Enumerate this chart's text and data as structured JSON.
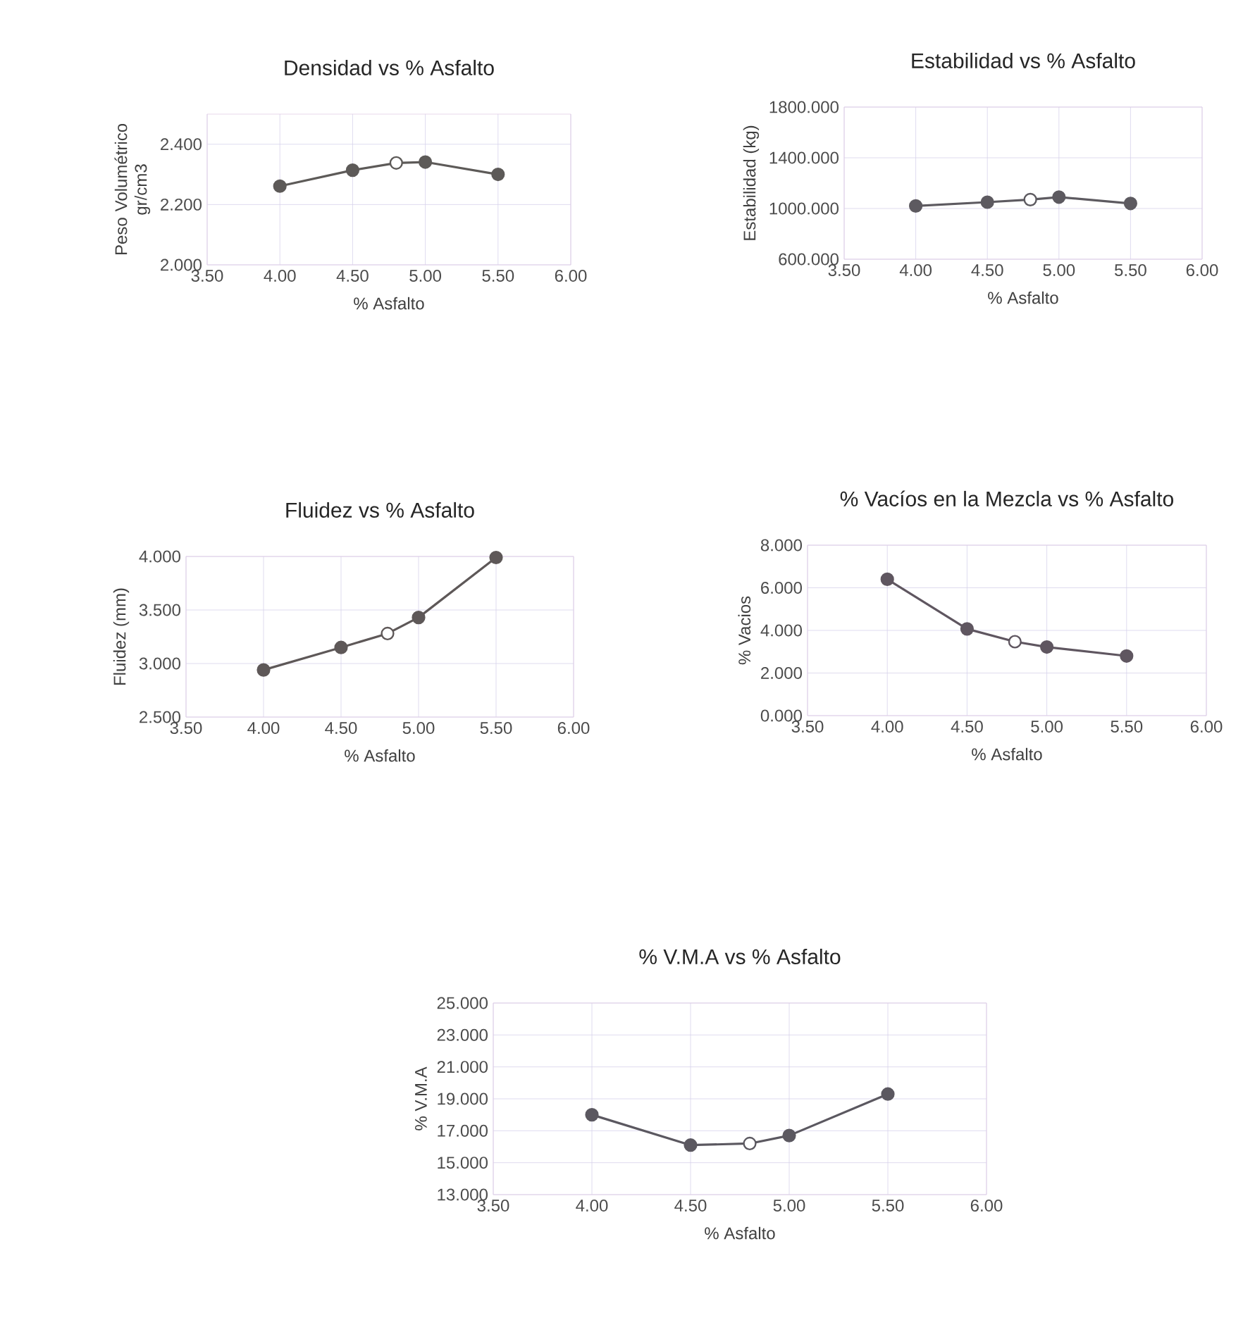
{
  "chart_data": [
    {
      "type": "line",
      "title": "Densidad vs % Asfalto",
      "xlabel": "% Asfalto",
      "ylabel": "Peso Volumétrico gr/cm3",
      "x": [
        4.0,
        4.5,
        4.8,
        5.0,
        5.5
      ],
      "series": [
        {
          "color": "#5d5a58",
          "colors": [
            "#5d5a58",
            "#5d5a58",
            "#ffffff",
            "#5d5a58",
            "#5d5a58"
          ],
          "values": [
            2.261,
            2.314,
            2.338,
            2.341,
            2.3
          ]
        }
      ],
      "xlim": [
        3.5,
        6.0
      ],
      "xticks": [
        {
          "value": 3.5,
          "label": "3.50"
        },
        {
          "value": 4.0,
          "label": "4.00"
        },
        {
          "value": 4.5,
          "label": "4.50"
        },
        {
          "value": 5.0,
          "label": "5.00"
        },
        {
          "value": 5.5,
          "label": "5.50"
        },
        {
          "value": 6.0,
          "label": "6.00"
        }
      ],
      "ylim": [
        2.0,
        2.5
      ],
      "yticks": [
        {
          "value": 2.0,
          "label": "2.000"
        },
        {
          "value": 2.2,
          "label": "2.200"
        },
        {
          "value": 2.4,
          "label": "2.400"
        }
      ],
      "grid": true,
      "marker": "circle",
      "line_style": "solid"
    },
    {
      "type": "line",
      "title": "Estabilidad vs % Asfalto",
      "xlabel": "% Asfalto",
      "ylabel": "Estabilidad (kg)",
      "x": [
        4.0,
        4.5,
        4.8,
        5.0,
        5.5
      ],
      "series": [
        {
          "color": "#5d5a60",
          "colors": [
            "#5d5a60",
            "#5d5a60",
            "#ffffff",
            "#5d5a60",
            "#5d5a60"
          ],
          "values": [
            1020,
            1050,
            1070,
            1090,
            1040
          ]
        }
      ],
      "xlim": [
        3.5,
        6.0
      ],
      "xticks": [
        {
          "value": 3.5,
          "label": "3.50"
        },
        {
          "value": 4.0,
          "label": "4.00"
        },
        {
          "value": 4.5,
          "label": "4.50"
        },
        {
          "value": 5.0,
          "label": "5.00"
        },
        {
          "value": 5.5,
          "label": "5.50"
        },
        {
          "value": 6.0,
          "label": "6.00"
        }
      ],
      "ylim": [
        600,
        1800
      ],
      "yticks": [
        {
          "value": 600,
          "label": "600.000"
        },
        {
          "value": 1000,
          "label": "1000.000"
        },
        {
          "value": 1400,
          "label": "1400.000"
        },
        {
          "value": 1800,
          "label": "1800.000"
        }
      ],
      "grid": true,
      "marker": "circle",
      "line_style": "solid"
    },
    {
      "type": "line",
      "title": "Fluidez vs % Asfalto",
      "xlabel": "% Asfalto",
      "ylabel": "Fluidez (mm)",
      "x": [
        4.0,
        4.5,
        4.8,
        5.0,
        5.5
      ],
      "series": [
        {
          "color": "#5e5858",
          "colors": [
            "#5e5858",
            "#5e5858",
            "#ffffff",
            "#5e5858",
            "#5e5858"
          ],
          "values": [
            2.94,
            3.15,
            3.28,
            3.43,
            3.99
          ]
        }
      ],
      "xlim": [
        3.5,
        6.0
      ],
      "xticks": [
        {
          "value": 3.5,
          "label": "3.50"
        },
        {
          "value": 4.0,
          "label": "4.00"
        },
        {
          "value": 4.5,
          "label": "4.50"
        },
        {
          "value": 5.0,
          "label": "5.00"
        },
        {
          "value": 5.5,
          "label": "5.50"
        },
        {
          "value": 6.0,
          "label": "6.00"
        }
      ],
      "ylim": [
        2.5,
        4.0
      ],
      "yticks": [
        {
          "value": 2.5,
          "label": "2.500"
        },
        {
          "value": 3.0,
          "label": "3.000"
        },
        {
          "value": 3.5,
          "label": "3.500"
        },
        {
          "value": 4.0,
          "label": "4.000"
        }
      ],
      "grid": true,
      "marker": "circle",
      "line_style": "solid"
    },
    {
      "type": "line",
      "title": "% Vacíos en la Mezcla vs % Asfalto",
      "xlabel": "% Asfalto",
      "ylabel": "% Vacios",
      "x": [
        4.0,
        4.5,
        4.8,
        5.0,
        5.5
      ],
      "series": [
        {
          "color": "#5f5660",
          "colors": [
            "#5f5660",
            "#5f5660",
            "#ffffff",
            "#5f5660",
            "#5f5660"
          ],
          "values": [
            6.4,
            4.07,
            3.47,
            3.22,
            2.8
          ]
        }
      ],
      "xlim": [
        3.5,
        6.0
      ],
      "xticks": [
        {
          "value": 3.5,
          "label": "3.50"
        },
        {
          "value": 4.0,
          "label": "4.00"
        },
        {
          "value": 4.5,
          "label": "4.50"
        },
        {
          "value": 5.0,
          "label": "5.00"
        },
        {
          "value": 5.5,
          "label": "5.50"
        },
        {
          "value": 6.0,
          "label": "6.00"
        }
      ],
      "ylim": [
        0,
        8
      ],
      "yticks": [
        {
          "value": 0,
          "label": "0.000"
        },
        {
          "value": 2,
          "label": "2.000"
        },
        {
          "value": 4,
          "label": "4.000"
        },
        {
          "value": 6,
          "label": "6.000"
        },
        {
          "value": 8,
          "label": "8.000"
        }
      ],
      "grid": true,
      "marker": "circle",
      "line_style": "solid"
    },
    {
      "type": "line",
      "title": "% V.M.A vs % Asfalto",
      "xlabel": "% Asfalto",
      "ylabel": "% V.M.A",
      "x": [
        4.0,
        4.5,
        4.8,
        5.0,
        5.5
      ],
      "series": [
        {
          "color": "#5b5860",
          "colors": [
            "#5b5860",
            "#5b5860",
            "#ffffff",
            "#5b5860",
            "#5b5860"
          ],
          "values": [
            18.0,
            16.1,
            16.2,
            16.7,
            19.3
          ]
        }
      ],
      "xlim": [
        3.5,
        6.0
      ],
      "xticks": [
        {
          "value": 3.5,
          "label": "3.50"
        },
        {
          "value": 4.0,
          "label": "4.00"
        },
        {
          "value": 4.5,
          "label": "4.50"
        },
        {
          "value": 5.0,
          "label": "5.00"
        },
        {
          "value": 5.5,
          "label": "5.50"
        },
        {
          "value": 6.0,
          "label": "6.00"
        }
      ],
      "ylim": [
        13,
        25
      ],
      "yticks": [
        {
          "value": 13,
          "label": "13.000"
        },
        {
          "value": 15,
          "label": "15.000"
        },
        {
          "value": 17,
          "label": "17.000"
        },
        {
          "value": 19,
          "label": "19.000"
        },
        {
          "value": 21,
          "label": "21.000"
        },
        {
          "value": 23,
          "label": "23.000"
        },
        {
          "value": 25,
          "label": "25.000"
        }
      ],
      "grid": true,
      "marker": "circle",
      "line_style": "solid"
    }
  ]
}
